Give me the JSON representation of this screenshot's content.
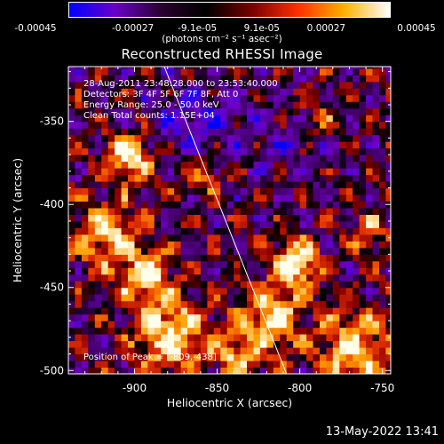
{
  "colorbar": {
    "ticks": [
      "-0.00045",
      "-0.00027",
      "-9.1e-05",
      "9.1e-05",
      "0.00027",
      "0.00045"
    ],
    "units": "(photons cm⁻² s⁻¹ asec⁻²)",
    "colors": [
      "#0000ff",
      "#6a00c8",
      "#2a0030",
      "#000000",
      "#7a0000",
      "#ff3000",
      "#ffb000",
      "#ffffff"
    ]
  },
  "title": "Reconstructed RHESSI Image",
  "annotations": [
    "28-Aug-2011 23:48:28.000 to 23:53:40.000",
    "Detectors: 3F 4F 5F 6F 7F 8F, Att 0",
    "Energy Range: 25.0 - 50.0 keV",
    "Clean    Total counts: 1.15E+04"
  ],
  "peak_text": "Position of Peak = [-809,-438]",
  "timestamp": "13-May-2022 13:41",
  "chart_data": {
    "type": "heatmap",
    "title": "Reconstructed RHESSI Image",
    "xlabel": "Heliocentric X (arcsec)",
    "ylabel": "Heliocentric Y (arcsec)",
    "xlim": [
      -940,
      -745
    ],
    "ylim": [
      -502,
      -317
    ],
    "x_ticks": [
      -900,
      -850,
      -800,
      -750
    ],
    "x_tick_labels": [
      "-900",
      "-850",
      "-800",
      "-750"
    ],
    "y_ticks": [
      -500,
      -450,
      -400,
      -350
    ],
    "y_tick_labels": [
      "-500",
      "-450",
      "-400",
      "-350"
    ],
    "color_range": [
      -0.00045,
      0.00045
    ],
    "peak_position": [
      -809,
      -438
    ],
    "limb_line": [
      [
        -882,
        -317
      ],
      [
        -808,
        -502
      ]
    ],
    "pixel_size_arcsec": 4
  }
}
